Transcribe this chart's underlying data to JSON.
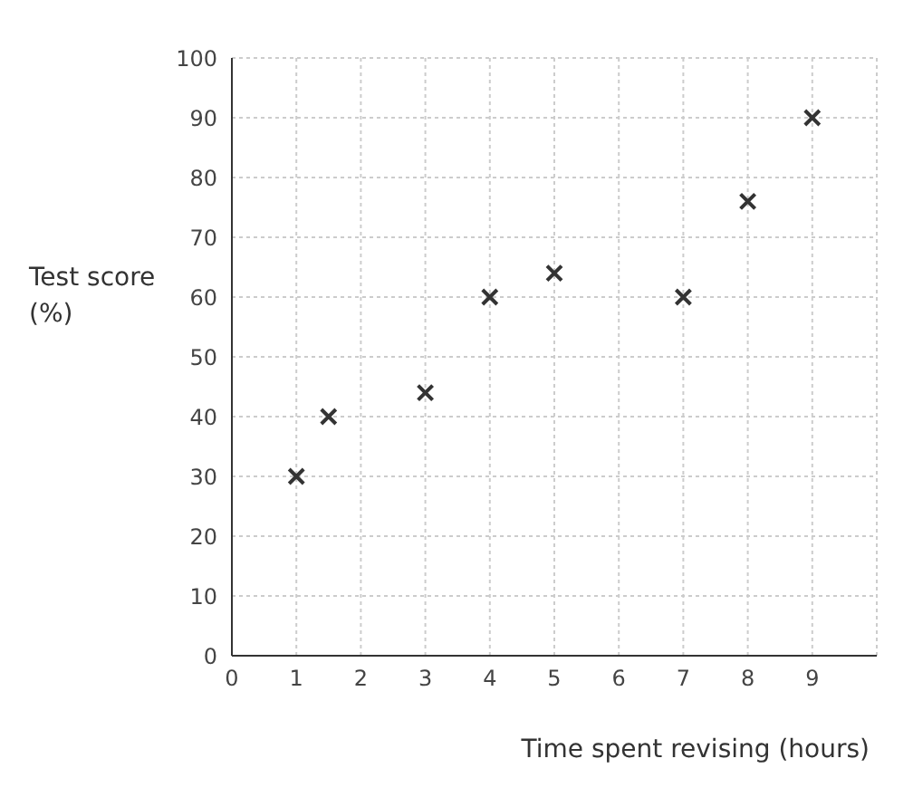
{
  "chart_data": {
    "type": "scatter",
    "xlabel": "Time spent revising (hours)",
    "ylabel": "Test score (%)",
    "x": [
      1,
      1.5,
      3,
      4,
      5,
      7,
      8,
      9
    ],
    "series": [
      {
        "color": "#333333",
        "values": [
          30,
          40,
          44,
          60,
          64,
          60,
          76,
          90
        ]
      }
    ],
    "xlim": [
      0,
      10
    ],
    "xticks": [
      0,
      1,
      2,
      3,
      4,
      5,
      6,
      7,
      8,
      9,
      {
        "value": 10,
        "label": null
      }
    ],
    "ylim": [
      0,
      100
    ],
    "yticks": [
      0,
      10,
      20,
      30,
      40,
      50,
      60,
      70,
      80,
      90,
      100
    ],
    "grid": true,
    "marker": "cross",
    "legend": false
  }
}
